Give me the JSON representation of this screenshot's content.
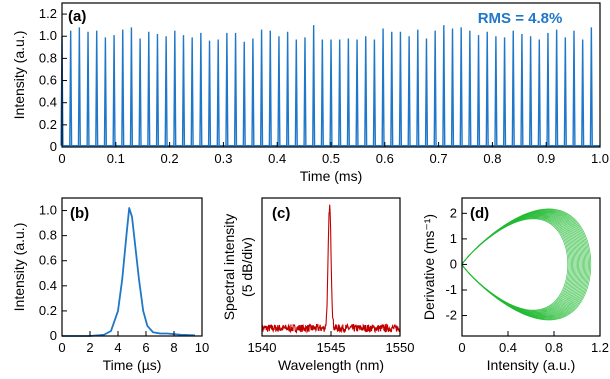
{
  "colors": {
    "blue": "#1f77c9",
    "red": "#c00000",
    "green": "#22bb33",
    "axis": "#000000"
  },
  "chart_data": [
    {
      "type": "line",
      "panel_label": "(a)",
      "annotation": "RMS = 4.8%",
      "xlabel": "Time (ms)",
      "ylabel": "Intensity (a.u.)",
      "xlim": [
        0,
        1.0
      ],
      "ylim": [
        0,
        1.3
      ],
      "xticks": [
        0,
        0.1,
        0.2,
        0.3,
        0.4,
        0.5,
        0.6,
        0.7,
        0.8,
        0.9,
        1.0
      ],
      "xtick_labels": [
        "0",
        "0.1",
        "0.2",
        "0.3",
        "0.4",
        "0.5",
        "0.6",
        "0.7",
        "0.8",
        "0.9",
        "1.0"
      ],
      "yticks": [
        0,
        0.2,
        0.4,
        0.6,
        0.8,
        1.0,
        1.2
      ],
      "ytick_labels": [
        "0",
        "0.2",
        "0.4",
        "0.6",
        "0.8",
        "1.0",
        "1.2"
      ],
      "series": [
        {
          "color": "#1f77c9",
          "pulse_period_ms": 0.01613,
          "peaks": [
            1.0,
            1.05,
            1.08,
            1.04,
            1.05,
            0.99,
            1.01,
            1.06,
            1.08,
            0.98,
            1.04,
            1.02,
            1.0,
            1.05,
            1.01,
            0.99,
            1.03,
            0.96,
            0.97,
            1.03,
            1.03,
            0.95,
            0.98,
            1.06,
            1.05,
            1.0,
            1.04,
            0.97,
            0.99,
            1.1,
            0.97,
            0.97,
            0.97,
            0.98,
            0.97,
            1.0,
            0.97,
            1.07,
            1.04,
            1.04,
            1.0,
            1.06,
            0.98,
            1.05,
            1.1,
            1.07,
            1.08,
            1.05,
            1.01,
            1.04,
            1.0,
            0.99,
            1.05,
            1.02,
            1.0,
            0.97,
            1.03,
            1.06,
            0.99,
            1.05,
            0.97,
            1.08,
            1.14
          ]
        }
      ]
    },
    {
      "type": "line",
      "panel_label": "(b)",
      "xlabel": "Time (µs)",
      "ylabel": "Intensity (a.u.)",
      "xlim": [
        0,
        10
      ],
      "ylim": [
        0,
        1.1
      ],
      "xticks": [
        0,
        2,
        4,
        6,
        8,
        10
      ],
      "xtick_labels": [
        "0",
        "2",
        "4",
        "6",
        "8",
        "10"
      ],
      "yticks": [
        0,
        0.2,
        0.4,
        0.6,
        0.8,
        1.0
      ],
      "ytick_labels": [
        "0",
        "0.2",
        "0.4",
        "0.6",
        "0.8",
        "1.0"
      ],
      "series": [
        {
          "color": "#1f77c9",
          "x": [
            0,
            2,
            3,
            3.5,
            4,
            4.3,
            4.6,
            4.8,
            5.0,
            5.2,
            5.5,
            5.8,
            6.1,
            6.5,
            7.0,
            7.5,
            8.0,
            8.5,
            9.0,
            9.5
          ],
          "y": [
            0,
            0,
            0.01,
            0.04,
            0.2,
            0.45,
            0.8,
            1.02,
            0.95,
            0.75,
            0.45,
            0.2,
            0.08,
            0.03,
            0.02,
            0.02,
            0.015,
            0.01,
            0.008,
            0.005
          ]
        }
      ]
    },
    {
      "type": "line",
      "panel_label": "(c)",
      "xlabel": "Wavelength (nm)",
      "ylabel": "Spectral intensity (5 dB/div)",
      "xlim": [
        1540,
        1550
      ],
      "xticks": [
        1540,
        1545,
        1550
      ],
      "xtick_labels": [
        "1540",
        "1545",
        "1550"
      ],
      "series": [
        {
          "color": "#c00000",
          "peak_wavelength_nm": 1544.9,
          "linewidth_nm": 0.15,
          "noise_floor_div": 0.45,
          "peak_div": 7.5,
          "total_divs": 8
        }
      ]
    },
    {
      "type": "line",
      "panel_label": "(d)",
      "xlabel": "Intensity (a.u.)",
      "ylabel": "Derivative (ms⁻¹)",
      "xlim": [
        0,
        1.2
      ],
      "ylim": [
        -2.8,
        2.6
      ],
      "xticks": [
        0,
        0.4,
        0.8,
        1.2
      ],
      "xtick_labels": [
        "0",
        "0.4",
        "0.8",
        "1.2"
      ],
      "yticks": [
        -2,
        -1,
        0,
        1,
        2
      ],
      "ytick_labels": [
        "-2",
        "-1",
        "0",
        "1",
        "2"
      ],
      "series": [
        {
          "color": "#22bb33",
          "loop_count": 20,
          "loop_amplitude_range": [
            0.92,
            1.12
          ]
        }
      ]
    }
  ]
}
